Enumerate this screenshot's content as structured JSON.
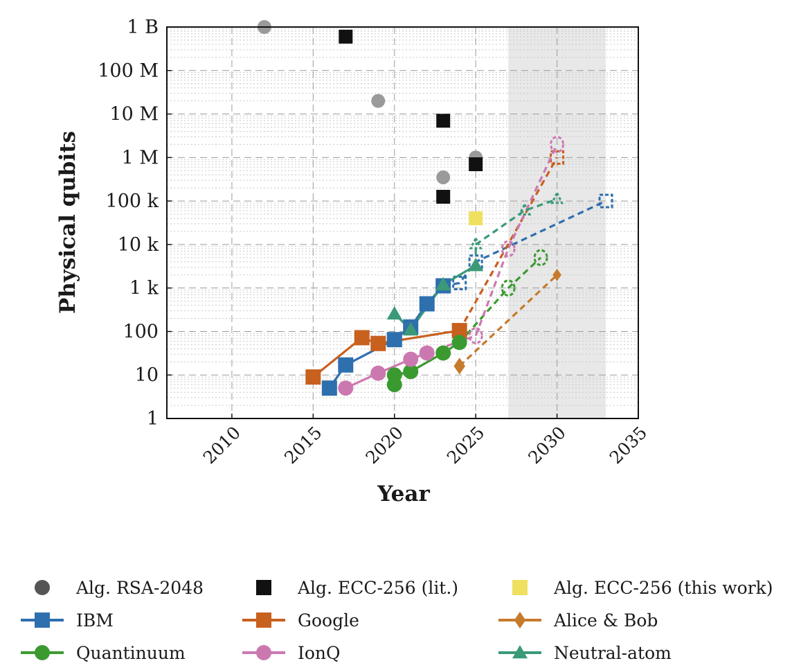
{
  "chart_data": {
    "type": "scatter",
    "xlabel": "Year",
    "ylabel": "Physical qubits",
    "xlim": [
      2006,
      2035
    ],
    "ylim": [
      1,
      1000000000
    ],
    "y_scale": "log",
    "x_ticks": [
      "2010",
      "2015",
      "2020",
      "2025",
      "2030",
      "2035"
    ],
    "y_ticks": [
      "1",
      "10",
      "100",
      "1 k",
      "10 k",
      "100 k",
      "1 M",
      "10 M",
      "100 M",
      "1 B"
    ],
    "y_tick_values": [
      1,
      10,
      100,
      1000,
      10000,
      100000,
      1000000,
      10000000,
      100000000,
      1000000000
    ],
    "grid": true,
    "shaded_region": {
      "x_from": 2027,
      "x_to": 2033,
      "color": "#e8e8e8"
    },
    "legend_position": "bottom",
    "series": [
      {
        "name": "Alg. RSA-2048",
        "marker": "circle",
        "color": "#9a9a9a",
        "legend_color": "#555555",
        "line": "none",
        "points": [
          [
            2012,
            1000000000
          ],
          [
            2019,
            20000000
          ],
          [
            2023,
            350000
          ],
          [
            2025,
            1000000
          ]
        ]
      },
      {
        "name": "Alg. ECC-256 (lit.)",
        "marker": "square",
        "color": "#111111",
        "line": "none",
        "points": [
          [
            2017,
            600000000
          ],
          [
            2023,
            7000000
          ],
          [
            2023,
            125000
          ],
          [
            2025,
            700000
          ]
        ]
      },
      {
        "name": "Alg. ECC-256 (this work)",
        "marker": "square",
        "color": "#f0e060",
        "line": "none",
        "points": [
          [
            2025,
            40000
          ]
        ]
      },
      {
        "name": "IBM",
        "marker": "square",
        "color": "#2e6fae",
        "points": [
          [
            2016,
            5
          ],
          [
            2017,
            17
          ],
          [
            2020,
            65
          ],
          [
            2021,
            127
          ],
          [
            2022,
            433
          ],
          [
            2023,
            1121
          ]
        ],
        "projection": [
          [
            2024,
            1300
          ],
          [
            2025,
            4000
          ],
          [
            2033,
            100000
          ]
        ]
      },
      {
        "name": "Google",
        "marker": "square",
        "color": "#c8601e",
        "points": [
          [
            2015,
            9
          ],
          [
            2018,
            72
          ],
          [
            2019,
            53
          ],
          [
            2024,
            105
          ]
        ],
        "projection": [
          [
            2024,
            105
          ],
          [
            2030,
            1000000
          ]
        ]
      },
      {
        "name": "Alice & Bob",
        "marker": "diamond",
        "color": "#c67a2c",
        "points": [
          [
            2024,
            16
          ]
        ],
        "projection": [
          [
            2024,
            16
          ],
          [
            2030,
            2000
          ]
        ]
      },
      {
        "name": "Quantinuum",
        "marker": "circle",
        "color": "#3a9a30",
        "points": [
          [
            2020,
            6
          ],
          [
            2020,
            10
          ],
          [
            2021,
            12
          ],
          [
            2023,
            32
          ],
          [
            2024,
            56
          ]
        ],
        "projection": [
          [
            2024,
            56
          ],
          [
            2027,
            1000
          ],
          [
            2029,
            5000
          ]
        ]
      },
      {
        "name": "IonQ",
        "marker": "circle",
        "color": "#cc78b0",
        "points": [
          [
            2017,
            5
          ],
          [
            2019,
            11
          ],
          [
            2021,
            23
          ],
          [
            2022,
            32
          ]
        ],
        "projection": [
          [
            2025,
            80
          ],
          [
            2027,
            8000
          ],
          [
            2030,
            2000000
          ]
        ]
      },
      {
        "name": "Neutral-atom",
        "marker": "triangle",
        "color": "#3a9a78",
        "points": [
          [
            2020,
            256
          ],
          [
            2021,
            110
          ],
          [
            2023,
            1200
          ],
          [
            2025,
            3300
          ]
        ],
        "projection": [
          [
            2025,
            10000
          ],
          [
            2028,
            60000
          ],
          [
            2030,
            110000
          ]
        ]
      }
    ]
  }
}
